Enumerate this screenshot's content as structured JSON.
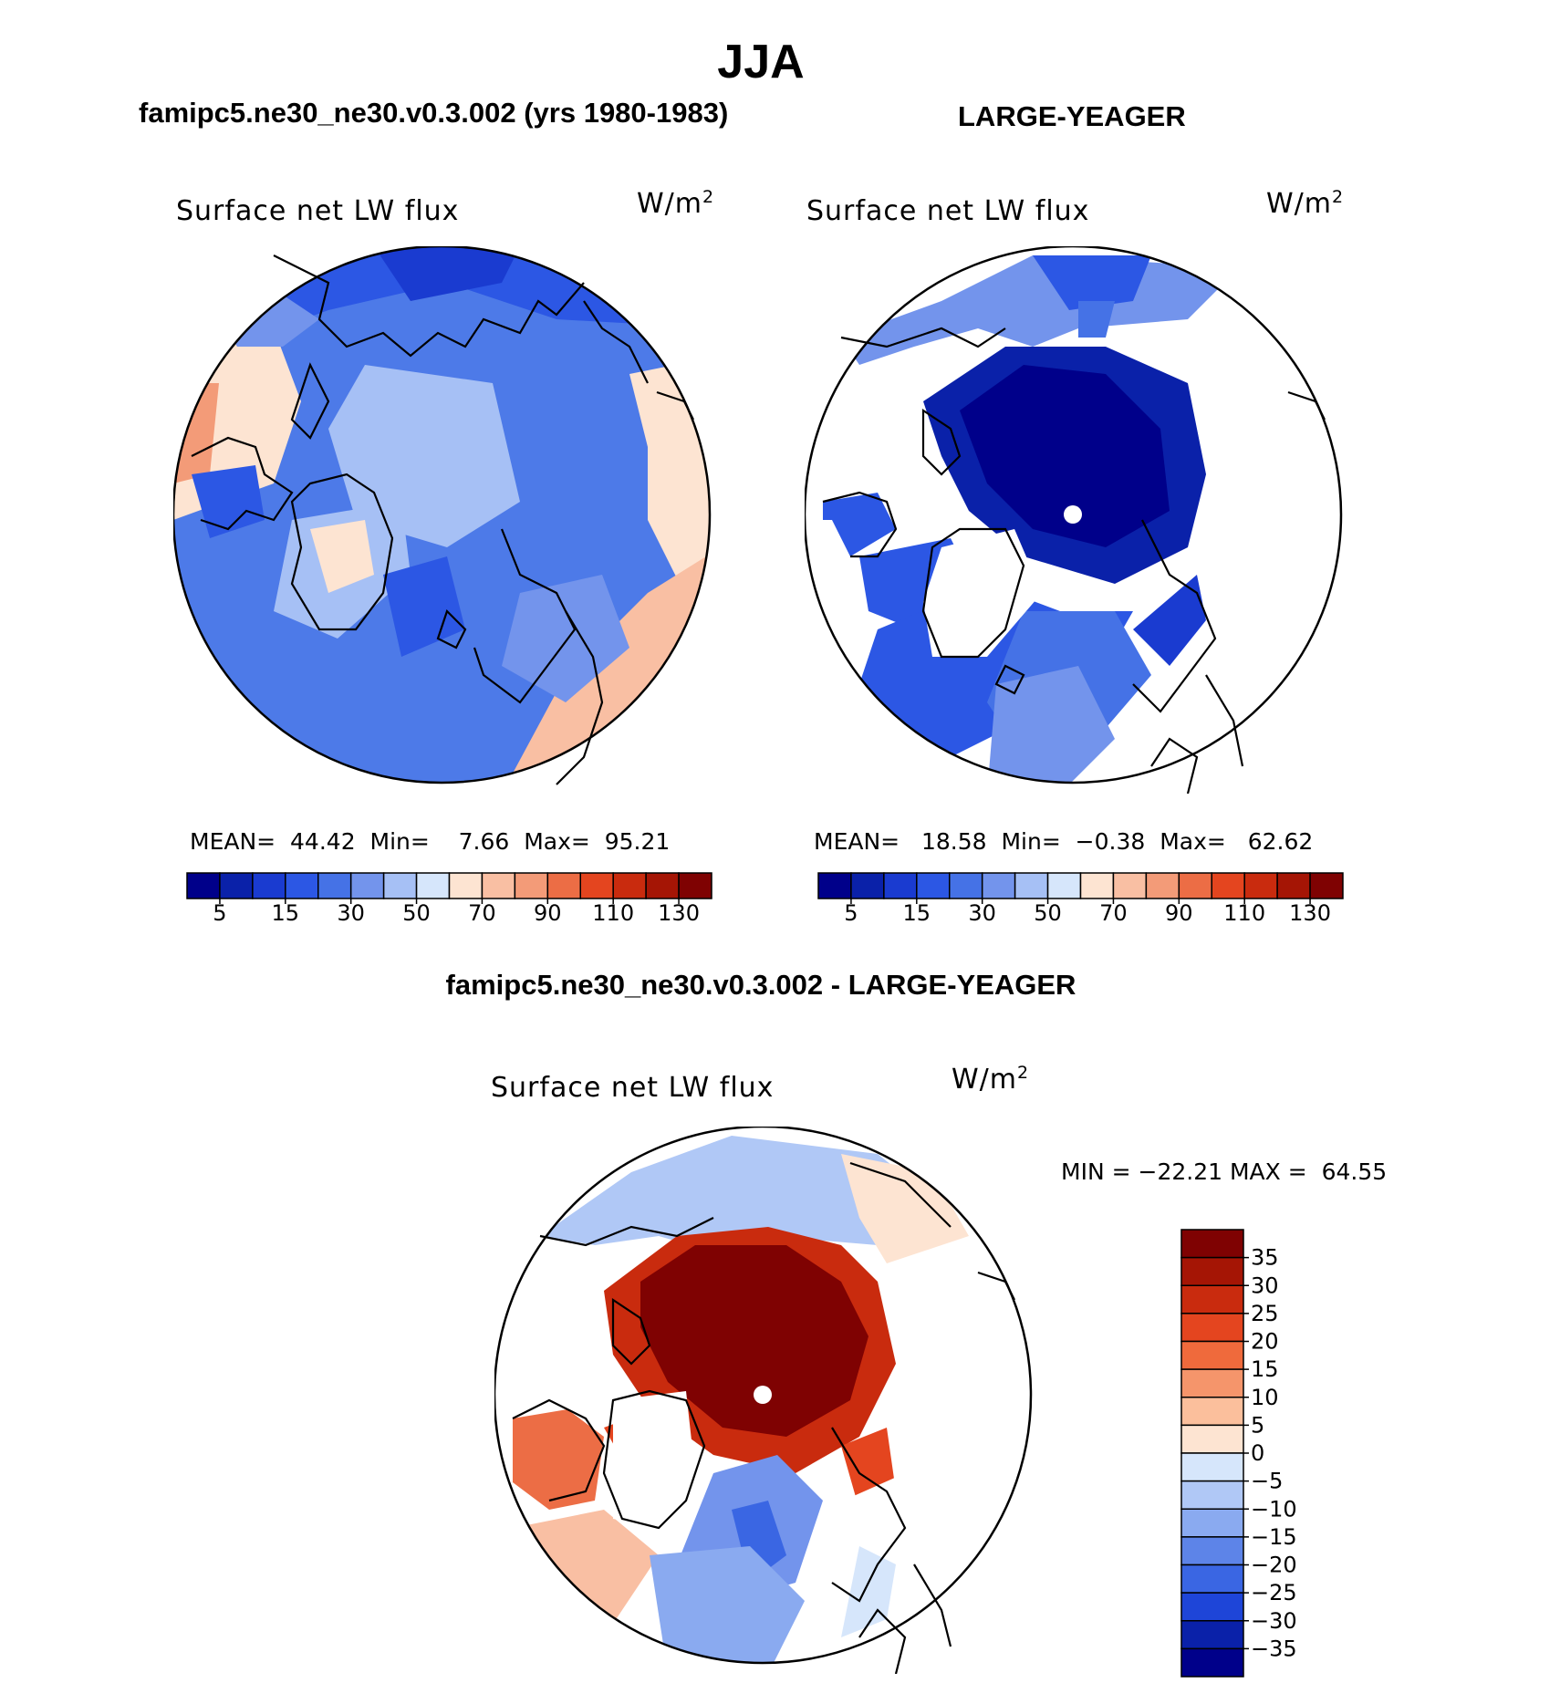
{
  "figure": {
    "title": "JJA",
    "left_title": "famipc5.ne30_ne30.v0.3.002 (yrs 1980-1983)",
    "right_title": "LARGE-YEAGER",
    "diff_title": "famipc5.ne30_ne30.v0.3.002 - LARGE-YEAGER"
  },
  "chart_data": [
    {
      "type": "heatmap",
      "projection": "north polar stereographic",
      "panel": "model",
      "field_label": "Surface net LW flux",
      "units": {
        "base": "W/m",
        "exp": "2"
      },
      "stats": {
        "mean_label": "MEAN=",
        "mean": "44.42",
        "min_label": "Min=",
        "min": "7.66",
        "max_label": "Max=",
        "max": "95.21"
      },
      "colorbar": {
        "orientation": "horizontal",
        "tick_labels": [
          "5",
          "15",
          "30",
          "50",
          "70",
          "90",
          "110",
          "130"
        ],
        "colors": [
          "#00008a",
          "#0a21a9",
          "#1a3bd0",
          "#2c57e4",
          "#4572e6",
          "#7394ec",
          "#a6c0f5",
          "#d6e6fb",
          "#fde4d2",
          "#f9bfa3",
          "#f39b78",
          "#ec6d45",
          "#e4451f",
          "#c92b0e",
          "#a51505",
          "#7f0202"
        ]
      }
    },
    {
      "type": "heatmap",
      "projection": "north polar stereographic",
      "panel": "observations",
      "field_label": "Surface net LW flux",
      "units": {
        "base": "W/m",
        "exp": "2"
      },
      "stats": {
        "mean_label": "MEAN=",
        "mean": "18.58",
        "min_label": "Min=",
        "min": "−0.38",
        "max_label": "Max=",
        "max": "62.62"
      },
      "colorbar": {
        "orientation": "horizontal",
        "tick_labels": [
          "5",
          "15",
          "30",
          "50",
          "70",
          "90",
          "110",
          "130"
        ],
        "colors": [
          "#00008a",
          "#0a21a9",
          "#1a3bd0",
          "#2c57e4",
          "#4572e6",
          "#7394ec",
          "#a6c0f5",
          "#d6e6fb",
          "#fde4d2",
          "#f9bfa3",
          "#f39b78",
          "#ec6d45",
          "#e4451f",
          "#c92b0e",
          "#a51505",
          "#7f0202"
        ]
      }
    },
    {
      "type": "heatmap",
      "projection": "north polar stereographic",
      "panel": "difference",
      "field_label": "Surface net LW flux",
      "units": {
        "base": "W/m",
        "exp": "2"
      },
      "stats": {
        "min_label": "MIN =",
        "min": "−22.21",
        "max_label": "MAX =",
        "max": "64.55"
      },
      "colorbar": {
        "orientation": "vertical",
        "tick_labels": [
          "35",
          "30",
          "25",
          "20",
          "15",
          "10",
          "5",
          "0",
          "−5",
          "−10",
          "−15",
          "−20",
          "−25",
          "−30",
          "−35"
        ],
        "colors": [
          "#7f0202",
          "#a51505",
          "#c92b0e",
          "#e4451f",
          "#ef6a3c",
          "#f5956b",
          "#fbbf9c",
          "#fde4d2",
          "#d6e6fb",
          "#b0c8f6",
          "#8aaaf0",
          "#5d84e8",
          "#3a66e3",
          "#1e45d8",
          "#0a21a9",
          "#00008a"
        ]
      }
    }
  ]
}
